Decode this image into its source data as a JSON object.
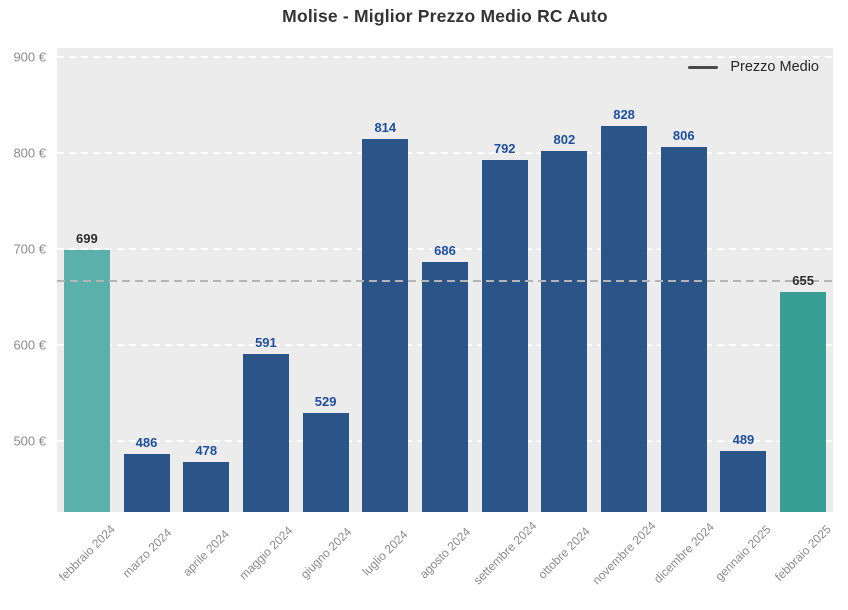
{
  "chart_data": {
    "type": "bar",
    "title": "Molise - Miglior Prezzo Medio RC Auto",
    "xlabel": "",
    "ylabel": "",
    "categories": [
      "febbraio 2024",
      "marzo 2024",
      "aprile 2024",
      "maggio 2024",
      "giugno 2024",
      "luglio 2024",
      "agosto 2024",
      "settembre 2024",
      "ottobre 2024",
      "novembre 2024",
      "dicembre 2024",
      "gennaio 2025",
      "febbraio 2025"
    ],
    "values": [
      699,
      486,
      478,
      591,
      529,
      814,
      686,
      792,
      802,
      828,
      806,
      489,
      655
    ],
    "bar_colors": [
      "#5cb0ab",
      "#2b5588",
      "#2b5588",
      "#2b5588",
      "#2b5588",
      "#2b5588",
      "#2b5588",
      "#2b5588",
      "#2b5588",
      "#2b5588",
      "#2b5588",
      "#2b5588",
      "#399e95"
    ],
    "value_label_colors": [
      "#2e2e2e",
      "#1d4f9e",
      "#1d4f9e",
      "#1d4f9e",
      "#1d4f9e",
      "#1d4f9e",
      "#1d4f9e",
      "#1d4f9e",
      "#1d4f9e",
      "#1d4f9e",
      "#1d4f9e",
      "#1d4f9e",
      "#2e2e2e"
    ],
    "ylim": [
      426,
      909
    ],
    "yticks": [
      {
        "value": 500,
        "label": "500 €"
      },
      {
        "value": 600,
        "label": "600 €"
      },
      {
        "value": 700,
        "label": "700 €"
      },
      {
        "value": 800,
        "label": "800 €"
      },
      {
        "value": 900,
        "label": "900 €"
      }
    ],
    "average_line": 666,
    "grid": "horizontal dashed",
    "legend_position": "top-right",
    "legend": [
      {
        "label": "Prezzo Medio",
        "marker": "line"
      }
    ]
  },
  "styles": {
    "plot_bg": "#ececec",
    "grid_color": "#ffffff",
    "avg_line_color": "#b5b5b5",
    "axis_text_color": "#8b8b8b",
    "title_color": "#333333",
    "legend_text_color": "#262626",
    "legend_marker_color": "#4a4a4a"
  }
}
